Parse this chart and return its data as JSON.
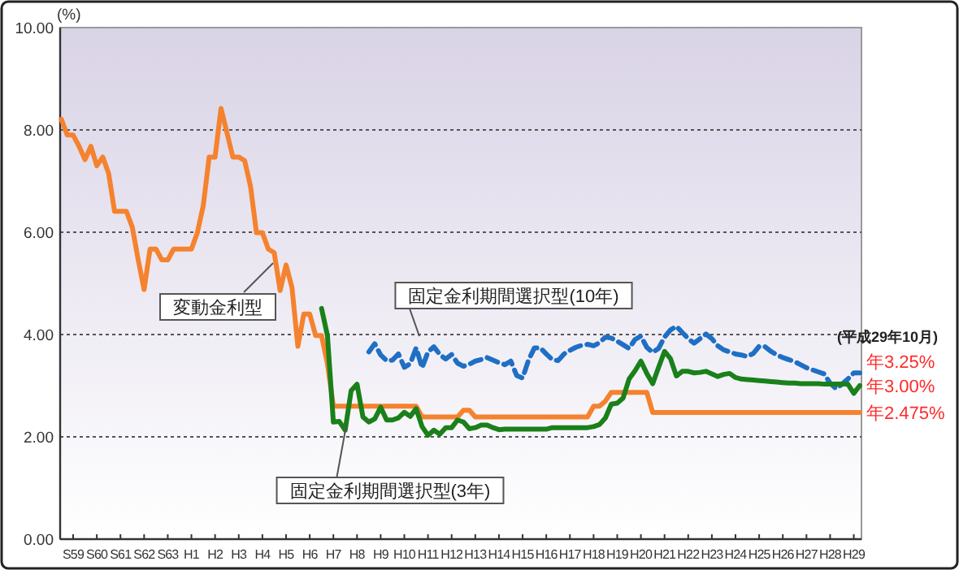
{
  "chart_data": {
    "type": "line",
    "ylabel": "(%)",
    "ylim": [
      0,
      10
    ],
    "categories": [
      null,
      null,
      "S59",
      null,
      null,
      null,
      "S60",
      null,
      null,
      null,
      "S61",
      null,
      null,
      null,
      "S62",
      null,
      null,
      null,
      "S63",
      null,
      null,
      null,
      "H1",
      null,
      null,
      null,
      "H2",
      null,
      null,
      null,
      "H3",
      null,
      null,
      null,
      "H4",
      null,
      null,
      null,
      "H5",
      null,
      null,
      null,
      "H6",
      null,
      null,
      null,
      "H7",
      null,
      null,
      null,
      "H8",
      null,
      null,
      null,
      "H9",
      null,
      null,
      null,
      "H10",
      null,
      null,
      null,
      "H11",
      null,
      null,
      null,
      "H12",
      null,
      null,
      null,
      "H13",
      null,
      null,
      null,
      "H14",
      null,
      null,
      null,
      "H15",
      null,
      null,
      null,
      "H16",
      null,
      null,
      null,
      "H17",
      null,
      null,
      null,
      "H18",
      null,
      null,
      null,
      "H19",
      null,
      null,
      null,
      "H20",
      null,
      null,
      null,
      "H21",
      null,
      null,
      null,
      "H22",
      null,
      null,
      null,
      "H23",
      null,
      null,
      null,
      "H24",
      null,
      null,
      null,
      "H25",
      null,
      null,
      null,
      "H26",
      null,
      null,
      null,
      "H27",
      null,
      null,
      null,
      "H28",
      null,
      null,
      null,
      "H29",
      null
    ],
    "yticks": [
      {
        "value": 0,
        "label": "0.00"
      },
      {
        "value": 2,
        "label": "2.00"
      },
      {
        "value": 4,
        "label": "4.00"
      },
      {
        "value": 6,
        "label": "6.00"
      },
      {
        "value": 8,
        "label": "8.00"
      },
      {
        "value": 10,
        "label": "10.00"
      }
    ],
    "grid": "y",
    "series": [
      {
        "name": "変動金利型",
        "color": "#f5822e",
        "line_style": "solid",
        "values": [
          8.21,
          7.9,
          7.9,
          7.68,
          7.42,
          7.68,
          7.3,
          7.47,
          7.15,
          6.41,
          6.41,
          6.41,
          6.1,
          5.46,
          4.88,
          5.67,
          5.67,
          5.46,
          5.46,
          5.67,
          5.67,
          5.67,
          5.67,
          5.99,
          6.52,
          7.47,
          7.47,
          8.42,
          7.95,
          7.47,
          7.47,
          7.4,
          6.89,
          5.99,
          5.99,
          5.67,
          5.6,
          4.86,
          5.36,
          4.92,
          3.77,
          4.4,
          4.4,
          3.98,
          3.98,
          3.43,
          2.6,
          2.6,
          2.6,
          2.6,
          2.6,
          2.6,
          2.6,
          2.6,
          2.6,
          2.6,
          2.6,
          2.6,
          2.6,
          2.6,
          2.6,
          2.39,
          2.39,
          2.39,
          2.39,
          2.39,
          2.39,
          2.39,
          2.52,
          2.52,
          2.39,
          2.39,
          2.39,
          2.39,
          2.39,
          2.39,
          2.39,
          2.39,
          2.39,
          2.39,
          2.39,
          2.39,
          2.39,
          2.39,
          2.39,
          2.39,
          2.39,
          2.39,
          2.39,
          2.39,
          2.6,
          2.6,
          2.7,
          2.87,
          2.87,
          2.87,
          2.87,
          2.87,
          2.87,
          2.87,
          2.475,
          2.475,
          2.475,
          2.475,
          2.475,
          2.475,
          2.475,
          2.475,
          2.475,
          2.475,
          2.475,
          2.475,
          2.475,
          2.475,
          2.475,
          2.475,
          2.475,
          2.475,
          2.475,
          2.475,
          2.475,
          2.475,
          2.475,
          2.475,
          2.475,
          2.475,
          2.475,
          2.475,
          2.475,
          2.475,
          2.475,
          2.475,
          2.475,
          2.475,
          2.475,
          2.475
        ]
      },
      {
        "name": "固定金利期間選択型(10年)",
        "color": "#1f6fc4",
        "line_style": "dashed",
        "values": [
          null,
          null,
          null,
          null,
          null,
          null,
          null,
          null,
          null,
          null,
          null,
          null,
          null,
          null,
          null,
          null,
          null,
          null,
          null,
          null,
          null,
          null,
          null,
          null,
          null,
          null,
          null,
          null,
          null,
          null,
          null,
          null,
          null,
          null,
          null,
          null,
          null,
          null,
          null,
          null,
          null,
          null,
          null,
          null,
          null,
          null,
          null,
          null,
          null,
          null,
          null,
          null,
          3.66,
          3.82,
          3.6,
          3.49,
          3.5,
          3.62,
          3.36,
          3.43,
          3.74,
          3.35,
          3.66,
          3.76,
          3.61,
          3.52,
          3.61,
          3.44,
          3.38,
          3.42,
          3.48,
          3.51,
          3.55,
          3.5,
          3.45,
          3.41,
          3.48,
          3.2,
          3.15,
          3.5,
          3.74,
          3.74,
          3.62,
          3.51,
          3.49,
          3.62,
          3.69,
          3.75,
          3.79,
          3.81,
          3.78,
          3.84,
          3.95,
          3.93,
          3.87,
          3.8,
          3.73,
          3.9,
          3.97,
          3.75,
          3.65,
          3.73,
          3.95,
          4.09,
          4.16,
          4.04,
          3.92,
          3.83,
          3.92,
          4.01,
          3.92,
          3.78,
          3.7,
          3.66,
          3.62,
          3.6,
          3.57,
          3.63,
          3.77,
          3.76,
          3.67,
          3.6,
          3.55,
          3.51,
          3.47,
          3.41,
          3.35,
          3.31,
          3.27,
          3.23,
          3.05,
          2.94,
          3.03,
          3.13,
          3.25,
          3.25
        ]
      },
      {
        "name": "固定金利期間選択型(3年)",
        "color": "#1a801a",
        "line_style": "solid",
        "values": [
          null,
          null,
          null,
          null,
          null,
          null,
          null,
          null,
          null,
          null,
          null,
          null,
          null,
          null,
          null,
          null,
          null,
          null,
          null,
          null,
          null,
          null,
          null,
          null,
          null,
          null,
          null,
          null,
          null,
          null,
          null,
          null,
          null,
          null,
          null,
          null,
          null,
          null,
          null,
          null,
          null,
          null,
          null,
          null,
          4.51,
          3.98,
          2.29,
          2.3,
          2.13,
          2.9,
          3.03,
          2.39,
          2.29,
          2.35,
          2.58,
          2.33,
          2.33,
          2.37,
          2.48,
          2.4,
          2.55,
          2.2,
          2.03,
          2.13,
          2.05,
          2.18,
          2.18,
          2.33,
          2.29,
          2.16,
          2.18,
          2.23,
          2.23,
          2.18,
          2.14,
          2.15,
          2.15,
          2.15,
          2.15,
          2.15,
          2.15,
          2.15,
          2.15,
          2.18,
          2.18,
          2.18,
          2.18,
          2.18,
          2.18,
          2.18,
          2.2,
          2.24,
          2.37,
          2.64,
          2.66,
          2.76,
          3.13,
          3.29,
          3.48,
          3.24,
          3.04,
          3.36,
          3.67,
          3.53,
          3.19,
          3.28,
          3.28,
          3.25,
          3.26,
          3.28,
          3.23,
          3.18,
          3.22,
          3.24,
          3.16,
          3.13,
          3.12,
          3.11,
          3.1,
          3.09,
          3.08,
          3.07,
          3.06,
          3.05,
          3.05,
          3.04,
          3.04,
          3.04,
          3.04,
          3.03,
          3.03,
          3.03,
          3.03,
          3.03,
          2.85,
          3.0
        ]
      }
    ],
    "annotations": [
      "(平成29年10月)",
      "年3.25%",
      "年3.00%",
      "年2.475%"
    ]
  }
}
